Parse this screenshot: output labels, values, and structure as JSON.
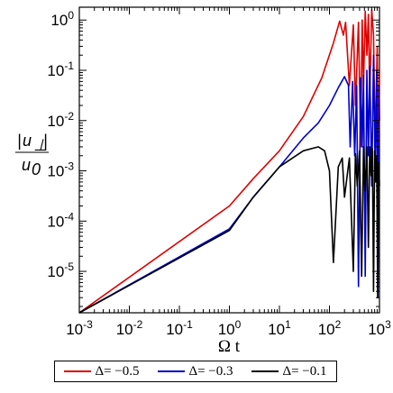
{
  "chart_data": {
    "type": "line",
    "xlabel": "Ω t",
    "ylabel_num": "u",
    "ylabel_sub": "⊥",
    "ylabel_den": "u",
    "ylabel_den_sub": "0",
    "x_scale": "log",
    "y_scale": "log",
    "xlim": [
      0.001,
      1000
    ],
    "ylim": [
      1.5e-06,
      1.8
    ],
    "grid": false,
    "legend_position": "bottom",
    "x_ticks": [
      {
        "value": 0.001,
        "base": "10",
        "exp": "-3"
      },
      {
        "value": 0.01,
        "base": "10",
        "exp": "-2"
      },
      {
        "value": 0.1,
        "base": "10",
        "exp": "-1"
      },
      {
        "value": 1,
        "base": "10",
        "exp": "0"
      },
      {
        "value": 10,
        "base": "10",
        "exp": "1"
      },
      {
        "value": 100,
        "base": "10",
        "exp": "2"
      },
      {
        "value": 1000,
        "base": "10",
        "exp": "3"
      }
    ],
    "y_ticks": [
      {
        "value": 1e-05,
        "base": "10",
        "exp": "-5"
      },
      {
        "value": 0.0001,
        "base": "10",
        "exp": "-4"
      },
      {
        "value": 0.001,
        "base": "10",
        "exp": "-3"
      },
      {
        "value": 0.01,
        "base": "10",
        "exp": "-2"
      },
      {
        "value": 0.1,
        "base": "10",
        "exp": "-1"
      },
      {
        "value": 1,
        "base": "10",
        "exp": "0"
      }
    ],
    "series": [
      {
        "name": "Δ= −0.5",
        "color": "#e00000",
        "x": [
          0.001,
          1,
          3,
          10,
          30,
          70,
          120,
          160,
          190,
          210,
          250,
          300,
          330,
          380,
          420,
          450,
          480,
          520,
          560,
          600,
          640,
          700,
          760,
          820,
          900,
          950,
          1000
        ],
        "y": [
          1.5e-06,
          0.0002,
          0.0007,
          0.0025,
          0.012,
          0.07,
          0.35,
          0.95,
          0.5,
          0.9,
          0.05,
          0.8,
          0.02,
          0.9,
          0.003,
          1.0,
          0.05,
          1.5,
          0.2,
          1.3,
          0.03,
          1.6,
          0.5,
          0.003,
          0.3,
          0.001,
          0.1
        ]
      },
      {
        "name": "Δ= −0.3",
        "color": "#0000cc",
        "x": [
          0.001,
          1,
          3,
          10,
          30,
          60,
          100,
          150,
          200,
          240,
          260,
          290,
          320,
          350,
          380,
          420,
          450,
          480,
          520,
          560,
          600,
          640,
          700,
          760,
          820,
          880,
          930,
          980,
          1000
        ],
        "y": [
          1.5e-06,
          7e-05,
          0.0003,
          0.0012,
          0.0045,
          0.009,
          0.02,
          0.045,
          0.075,
          0.05,
          0.003,
          0.06,
          0.002,
          0.05,
          5e-06,
          0.07,
          0.003,
          0.08,
          8e-06,
          0.1,
          0.002,
          0.12,
          0.0005,
          0.2,
          0.001,
          0.1,
          3e-06,
          0.05,
          0.01
        ]
      },
      {
        "name": "Δ= −0.1",
        "color": "#000000",
        "x": [
          0.001,
          1,
          3,
          10,
          30,
          60,
          80,
          100,
          120,
          150,
          180,
          200,
          250,
          300,
          330,
          360,
          400,
          440,
          480,
          520,
          560,
          600,
          640,
          680,
          720,
          760,
          800,
          840,
          880,
          920,
          960,
          1000
        ],
        "y": [
          1.5e-06,
          6.5e-05,
          0.0003,
          0.0012,
          0.0025,
          0.003,
          0.0025,
          0.001,
          1.5e-05,
          0.0012,
          0.0018,
          0.0003,
          0.0018,
          1e-05,
          0.0022,
          0.0005,
          0.0025,
          8e-06,
          0.003,
          0.0004,
          0.003,
          3e-05,
          0.003,
          0.0008,
          0.0028,
          4e-06,
          0.0025,
          0.0006,
          0.002,
          3e-06,
          0.0015,
          0.0005
        ]
      }
    ]
  }
}
